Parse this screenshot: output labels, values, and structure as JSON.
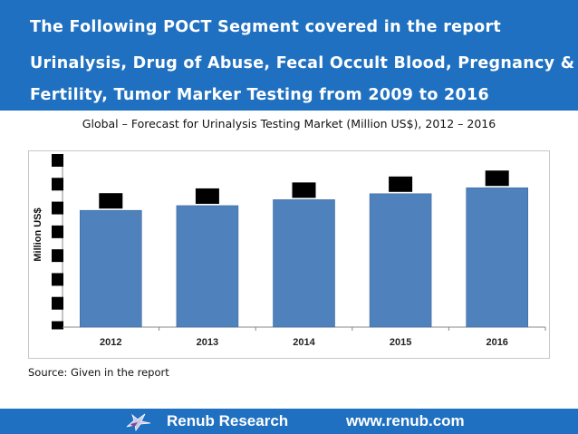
{
  "header": {
    "line1": "The Following POCT Segment covered in the report",
    "line2": "Urinalysis, Drug of Abuse, Fecal Occult Blood, Pregnancy &",
    "line3": "Fertility, Tumor Marker Testing  from 2009 to  2016"
  },
  "chart_data": {
    "type": "bar",
    "title": "Global – Forecast for Urinalysis Testing Market (Million US$), 2012 – 2016",
    "xlabel": "",
    "ylabel": "Million US$",
    "categories": [
      "2012",
      "2013",
      "2014",
      "2015",
      "2016"
    ],
    "values": [
      4.9,
      5.1,
      5.35,
      5.6,
      5.85
    ],
    "ylim": [
      0,
      7
    ],
    "yticks": [
      0,
      1,
      2,
      3,
      4,
      5,
      6,
      7
    ],
    "grid": false,
    "bar_color": "#4f81bd",
    "label_mask_color": "#000000"
  },
  "source": "Source: Given in the report",
  "footer": {
    "company": "Renub Research",
    "url": "www.renub.com",
    "logo_icon": "bird-logo-icon"
  }
}
